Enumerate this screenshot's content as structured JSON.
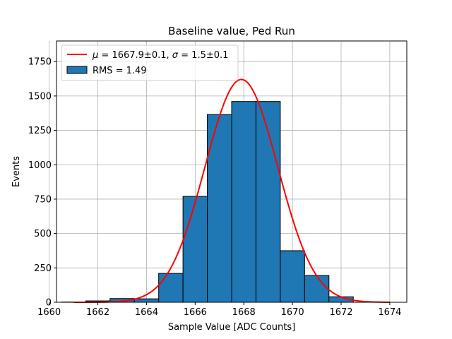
{
  "chart_data": {
    "type": "histogram",
    "title": "Baseline value, Ped Run",
    "xlabel": "Sample Value [ADC Counts]",
    "ylabel": "Events",
    "xlim": [
      1660.3,
      1674.7
    ],
    "ylim": [
      0,
      1900
    ],
    "xticks": [
      1660,
      1662,
      1664,
      1666,
      1668,
      1670,
      1672,
      1674
    ],
    "yticks": [
      0,
      250,
      500,
      750,
      1000,
      1250,
      1500,
      1750
    ],
    "grid": true,
    "legend_position": "upper-left",
    "histogram": {
      "name": "RMS = 1.49",
      "color": "#1f77b4",
      "edgecolor": "#000000",
      "bin_edges": [
        1660.5,
        1661.5,
        1662.5,
        1663.5,
        1664.5,
        1665.5,
        1666.5,
        1667.5,
        1668.5,
        1669.5,
        1670.5,
        1671.5,
        1672.5
      ],
      "counts": [
        2,
        10,
        27,
        25,
        210,
        770,
        1365,
        1460,
        1460,
        375,
        195,
        40
      ]
    },
    "fit": {
      "name": "μ = 1667.9±0.1, σ = 1.5±0.1",
      "legend_parts": {
        "mu_symbol": "μ",
        "mu_text": " = 1667.9±0.1, ",
        "sigma_symbol": "σ",
        "sigma_text": " = 1.5±0.1"
      },
      "color": "#ff0000",
      "type": "gaussian",
      "mu": 1667.9,
      "sigma": 1.5,
      "amplitude": 1620,
      "x_range": [
        1661,
        1674
      ]
    }
  }
}
